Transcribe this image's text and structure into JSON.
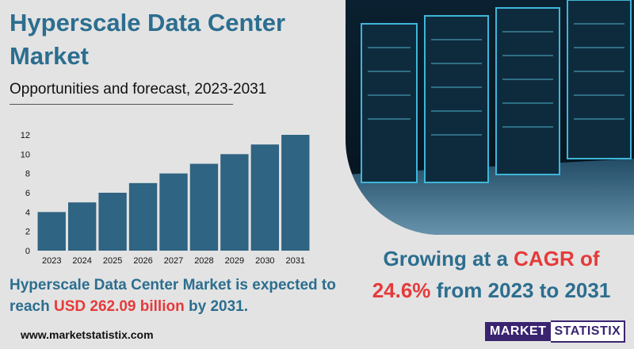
{
  "title": "Hyperscale Data Center Market",
  "subtitle": "Opportunities and forecast, 2023-2031",
  "chart_data": {
    "type": "bar",
    "categories": [
      "2023",
      "2024",
      "2025",
      "2026",
      "2027",
      "2028",
      "2029",
      "2030",
      "2031"
    ],
    "values": [
      4,
      5,
      6,
      7,
      8,
      9,
      10,
      11,
      12
    ],
    "ylim": [
      0,
      12
    ],
    "yticks": [
      0,
      2,
      4,
      6,
      8,
      10,
      12
    ],
    "grid": false,
    "bar_color": "#2f6482"
  },
  "growth": {
    "line1_prefix": "Growing at a ",
    "line1_highlight": "CAGR of",
    "line2_highlight": "24.6%",
    "line2_suffix": " from 2023 to 2031"
  },
  "expectation": {
    "prefix": "Hyperscale Data Center Market is expected to reach ",
    "highlight": "USD 262.09 billion",
    "suffix": " by 2031."
  },
  "website": "www.marketstatistix.com",
  "logo": {
    "part1": "MARKET",
    "part2": "STATISTIX"
  },
  "colors": {
    "accent": "#2c6e8f",
    "highlight": "#e53a3a",
    "logo": "#3a2470"
  },
  "photo": {
    "icon": "server-room-photo"
  }
}
